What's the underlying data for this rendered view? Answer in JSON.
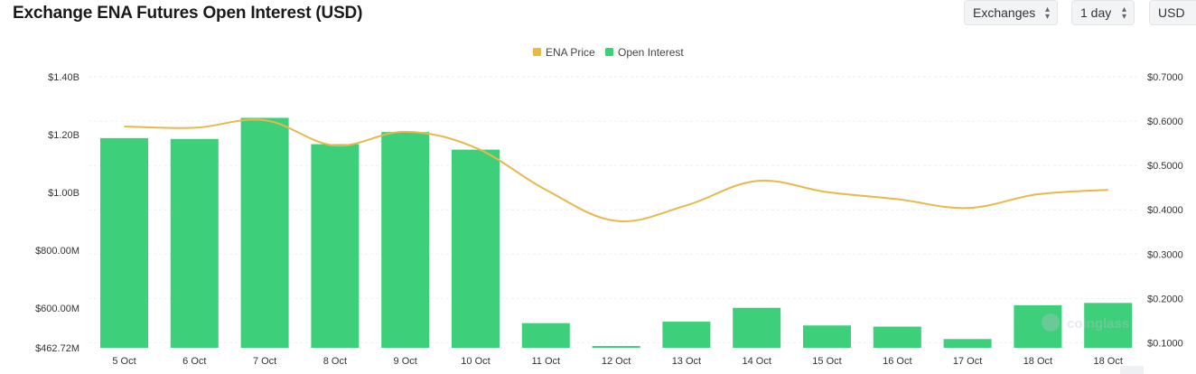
{
  "header": {
    "title": "Exchange ENA Futures Open Interest (USD)"
  },
  "controls": {
    "exchanges_label": "Exchanges",
    "interval_label": "1 day",
    "currency_label": "USD"
  },
  "watermark": {
    "text": "coinglass"
  },
  "chart_data": {
    "type": "bar",
    "title": "Exchange ENA Futures Open Interest (USD)",
    "legend": {
      "placement": "top-center",
      "entries": [
        {
          "name": "ENA Price",
          "color": "#e8b84a",
          "marker": "square"
        },
        {
          "name": "Open Interest",
          "color": "#3ecf7a",
          "marker": "square"
        }
      ]
    },
    "categories": [
      "5 Oct",
      "6 Oct",
      "7 Oct",
      "8 Oct",
      "9 Oct",
      "10 Oct",
      "11 Oct",
      "12 Oct",
      "13 Oct",
      "14 Oct",
      "15 Oct",
      "16 Oct",
      "17 Oct",
      "18 Oct",
      "18 Oct"
    ],
    "series": [
      {
        "name": "Open Interest",
        "type": "bar",
        "axis": "left",
        "color": "#3ecf7a",
        "values": [
          1188000000,
          1185000000,
          1258000000,
          1167000000,
          1209000000,
          1148000000,
          548000000,
          468000000,
          553000000,
          601000000,
          540000000,
          536000000,
          493000000,
          610000000,
          618000000
        ]
      },
      {
        "name": "ENA Price",
        "type": "line",
        "axis": "right",
        "color": "#e8b84a",
        "values": [
          0.588,
          0.585,
          0.602,
          0.545,
          0.576,
          0.54,
          0.445,
          0.375,
          0.41,
          0.465,
          0.44,
          0.424,
          0.404,
          0.435,
          0.445
        ]
      }
    ],
    "y_left": {
      "min": 462720000,
      "max": 1400000000,
      "ticks": [
        462720000,
        600000000,
        800000000,
        1000000000,
        1200000000,
        1400000000
      ],
      "tick_labels": [
        "$462.72M",
        "$600.00M",
        "$800.00M",
        "$1.00B",
        "$1.20B",
        "$1.40B"
      ]
    },
    "y_right": {
      "min": 0,
      "max": 0.7,
      "ticks": [
        0.1,
        0.2,
        0.3,
        0.4,
        0.5,
        0.6,
        0.7
      ],
      "tick_labels": [
        "$0.1000",
        "$0.2000",
        "$0.3000",
        "$0.4000",
        "$0.5000",
        "$0.6000",
        "$0.7000"
      ]
    },
    "grid": "horizontal dashed"
  }
}
